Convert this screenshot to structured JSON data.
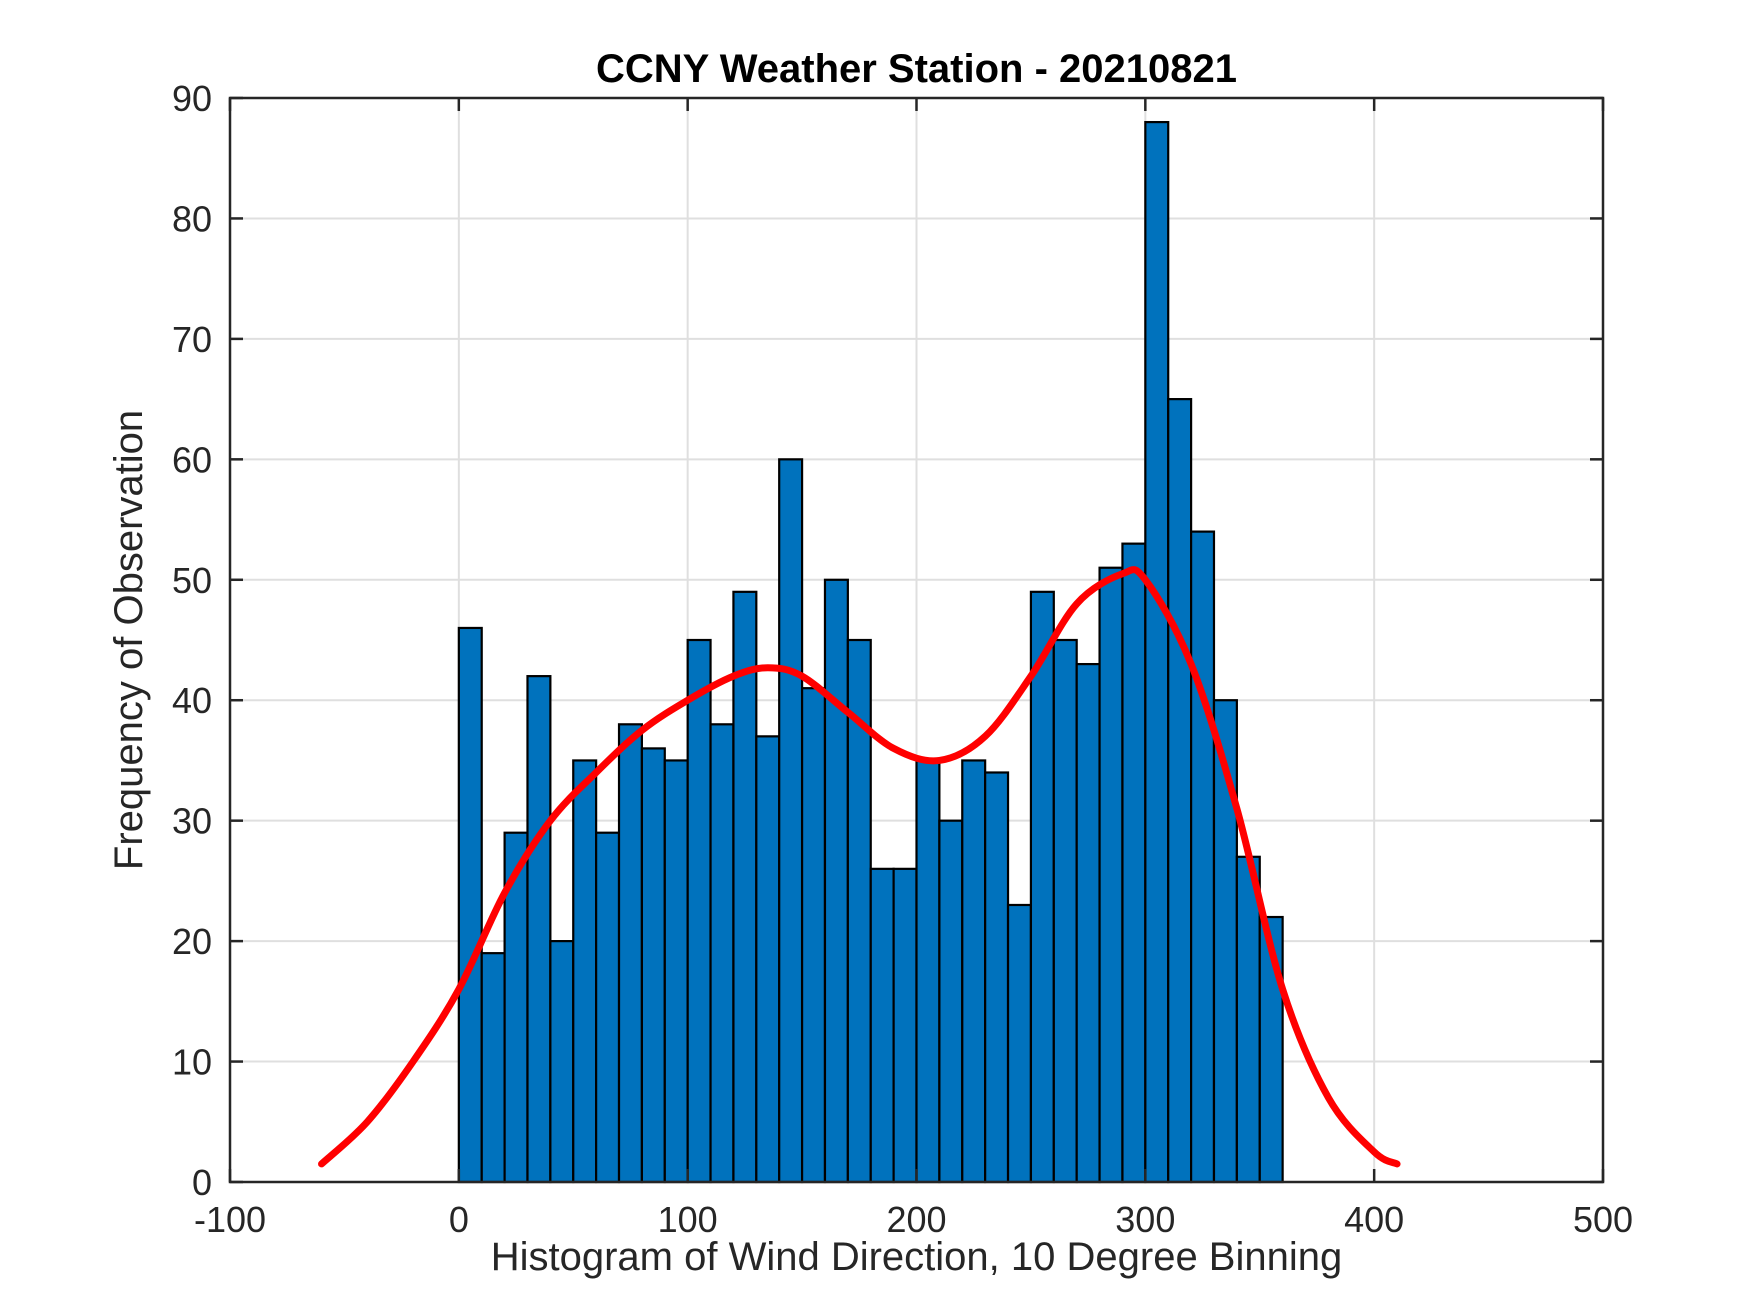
{
  "chart_data": {
    "type": "bar",
    "title": "CCNY Weather Station - 20210821",
    "xlabel": "Histogram of Wind Direction, 10 Degree Binning",
    "ylabel": "Frequency of Observation",
    "xlim": [
      -100,
      500
    ],
    "ylim": [
      0,
      90
    ],
    "xticks": [
      -100,
      0,
      100,
      200,
      300,
      400,
      500
    ],
    "yticks": [
      0,
      10,
      20,
      30,
      40,
      50,
      60,
      70,
      80,
      90
    ],
    "xtick_labels": [
      "-100",
      "0",
      "100",
      "200",
      "300",
      "400",
      "500"
    ],
    "ytick_labels": [
      "0",
      "10",
      "20",
      "30",
      "40",
      "50",
      "60",
      "70",
      "80",
      "90"
    ],
    "grid": true,
    "bin_width": 10,
    "bin_edges_start": 0,
    "bins": [
      0,
      10,
      20,
      30,
      40,
      50,
      60,
      70,
      80,
      90,
      100,
      110,
      120,
      130,
      140,
      150,
      160,
      170,
      180,
      190,
      200,
      210,
      220,
      230,
      240,
      250,
      260,
      270,
      280,
      290,
      300,
      310,
      320,
      330,
      340,
      350
    ],
    "values": [
      46,
      19,
      29,
      42,
      20,
      35,
      29,
      38,
      36,
      35,
      45,
      38,
      49,
      37,
      60,
      41,
      50,
      45,
      26,
      26,
      35,
      30,
      35,
      34,
      23,
      49,
      45,
      43,
      51,
      53,
      88,
      65,
      54,
      40,
      27,
      22
    ],
    "fit_curve": {
      "x": [
        -60,
        -40,
        -20,
        0,
        20,
        40,
        60,
        80,
        100,
        120,
        135,
        150,
        170,
        190,
        210,
        230,
        250,
        270,
        290,
        300,
        320,
        340,
        360,
        380,
        400,
        410
      ],
      "y": [
        1.5,
        5,
        10,
        16,
        24,
        30,
        34,
        37.5,
        40,
        42,
        42.7,
        42,
        39,
        36,
        35,
        37,
        42,
        48,
        50.5,
        50,
        43,
        31,
        16,
        7,
        2.5,
        1.5
      ]
    },
    "colors": {
      "bar_fill": "#0072BD",
      "bar_edge": "#000000",
      "fit_line": "#FF0000",
      "grid": "#DFDFDF",
      "axis": "#262626"
    }
  }
}
